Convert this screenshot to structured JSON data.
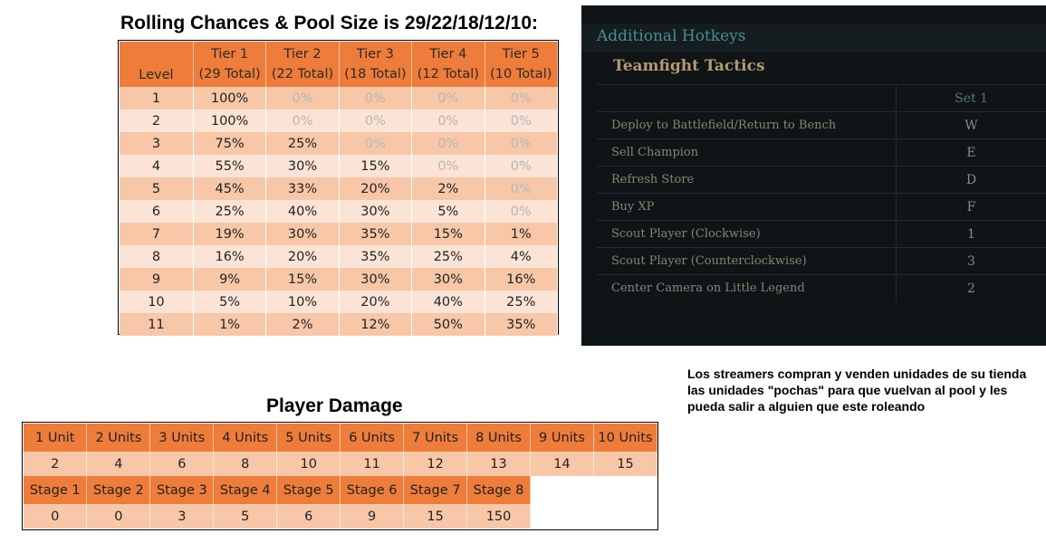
{
  "rolling": {
    "title": "Rolling Chances & Pool Size is 29/22/18/12/10:",
    "level_header": "Level",
    "tiers": [
      {
        "name": "Tier 1",
        "total": "(29 Total)"
      },
      {
        "name": "Tier 2",
        "total": "(22 Total)"
      },
      {
        "name": "Tier 3",
        "total": "(18 Total)"
      },
      {
        "name": "Tier 4",
        "total": "(12 Total)"
      },
      {
        "name": "Tier 5",
        "total": "(10 Total)"
      }
    ],
    "rows": [
      {
        "level": "1",
        "values": [
          "100%",
          "0%",
          "0%",
          "0%",
          "0%"
        ]
      },
      {
        "level": "2",
        "values": [
          "100%",
          "0%",
          "0%",
          "0%",
          "0%"
        ]
      },
      {
        "level": "3",
        "values": [
          "75%",
          "25%",
          "0%",
          "0%",
          "0%"
        ]
      },
      {
        "level": "4",
        "values": [
          "55%",
          "30%",
          "15%",
          "0%",
          "0%"
        ]
      },
      {
        "level": "5",
        "values": [
          "45%",
          "33%",
          "20%",
          "2%",
          "0%"
        ]
      },
      {
        "level": "6",
        "values": [
          "25%",
          "40%",
          "30%",
          "5%",
          "0%"
        ]
      },
      {
        "level": "7",
        "values": [
          "19%",
          "30%",
          "35%",
          "15%",
          "1%"
        ]
      },
      {
        "level": "8",
        "values": [
          "16%",
          "20%",
          "35%",
          "25%",
          "4%"
        ]
      },
      {
        "level": "9",
        "values": [
          "9%",
          "15%",
          "30%",
          "30%",
          "16%"
        ]
      },
      {
        "level": "10",
        "values": [
          "5%",
          "10%",
          "20%",
          "40%",
          "25%"
        ]
      },
      {
        "level": "11",
        "values": [
          "1%",
          "2%",
          "12%",
          "50%",
          "35%"
        ]
      }
    ],
    "colors": {
      "header": "#ee7c3a",
      "row_dark": "#f7c7a8",
      "row_light": "#fbe4d6",
      "zero_text": "#b6b6b6"
    }
  },
  "hotkeys": {
    "header": "Additional Hotkeys",
    "game": "Teamfight Tactics",
    "set_label": "Set 1",
    "items": [
      {
        "action": "Deploy to Battlefield/Return to Bench",
        "key": "W"
      },
      {
        "action": "Sell Champion",
        "key": "E"
      },
      {
        "action": "Refresh Store",
        "key": "D"
      },
      {
        "action": "Buy XP",
        "key": "F"
      },
      {
        "action": "Scout Player (Clockwise)",
        "key": "1"
      },
      {
        "action": "Scout Player (Counterclockwise)",
        "key": "3"
      },
      {
        "action": "Center Camera on Little Legend",
        "key": "2"
      }
    ],
    "colors": {
      "background": "#0f1417",
      "header_text": "#4b8d8f",
      "game_text": "#b39a6f"
    }
  },
  "note": "Los streamers compran y venden unidades de su tienda las unidades \"pochas\" para que vuelvan al pool y les pueda salir a alguien que este roleando",
  "damage": {
    "title": "Player Damage",
    "units": [
      {
        "label": "1 Unit",
        "value": "2"
      },
      {
        "label": "2 Units",
        "value": "4"
      },
      {
        "label": "3 Units",
        "value": "6"
      },
      {
        "label": "4 Units",
        "value": "8"
      },
      {
        "label": "5 Units",
        "value": "10"
      },
      {
        "label": "6 Units",
        "value": "11"
      },
      {
        "label": "7 Units",
        "value": "12"
      },
      {
        "label": "8 Units",
        "value": "13"
      },
      {
        "label": "9 Units",
        "value": "14"
      },
      {
        "label": "10 Units",
        "value": "15"
      }
    ],
    "stages": [
      {
        "label": "Stage 1",
        "value": "0"
      },
      {
        "label": "Stage 2",
        "value": "0"
      },
      {
        "label": "Stage 3",
        "value": "3"
      },
      {
        "label": "Stage 4",
        "value": "5"
      },
      {
        "label": "Stage 5",
        "value": "6"
      },
      {
        "label": "Stage 6",
        "value": "9"
      },
      {
        "label": "Stage 7",
        "value": "15"
      },
      {
        "label": "Stage 8",
        "value": "150"
      }
    ]
  }
}
